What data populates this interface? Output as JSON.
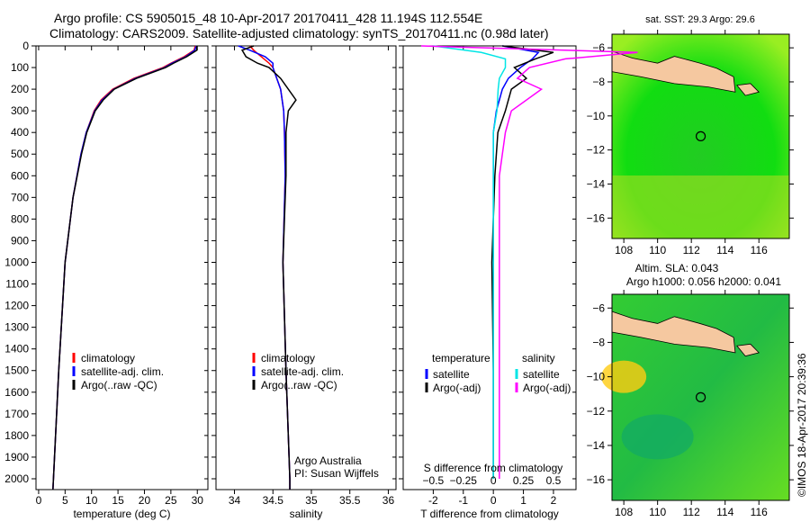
{
  "title_line1": "Argo profile: CS 5905015_48 10-Apr-2017 20170411_428 11.194S 112.554E",
  "title_line2": "Climatology: CARS2009. Satellite-adjusted climatology: synTS_20170411.nc (0.98d later)",
  "side_label": "©IMOS 18-Apr-2017 20:39:36",
  "colors": {
    "climatology": "#ff0000",
    "satellite": "#0000ff",
    "argo": "#000000",
    "sal_satellite": "#00e5e5",
    "sal_argo": "#ff00ff"
  },
  "chart_data": [
    {
      "type": "line",
      "xlabel": "temperature (deg C)",
      "xlim": [
        -0.5,
        32
      ],
      "ylim": [
        2050,
        0
      ],
      "xticks": [
        0,
        5,
        10,
        15,
        20,
        25,
        30
      ],
      "yticks": [
        0,
        100,
        200,
        300,
        400,
        500,
        600,
        700,
        800,
        900,
        1000,
        1100,
        1200,
        1300,
        1400,
        1500,
        1600,
        1700,
        1800,
        1900,
        2000
      ],
      "legend": [
        "climatology",
        "satellite-adj. clim.",
        "Argo(..raw -QC)"
      ],
      "depth": [
        0,
        20,
        50,
        80,
        100,
        150,
        200,
        250,
        300,
        400,
        500,
        700,
        1000,
        1500,
        2000,
        2050
      ],
      "series": [
        {
          "name": "climatology",
          "values": [
            29.6,
            29.4,
            27.5,
            25,
            23.5,
            18,
            14,
            11.8,
            10.5,
            9,
            8,
            6.5,
            5,
            3.8,
            2.8,
            2.7
          ]
        },
        {
          "name": "satellite-adj. clim.",
          "values": [
            29.8,
            29.5,
            27.8,
            25.2,
            23.8,
            18.3,
            14.2,
            12,
            10.6,
            9,
            8,
            6.5,
            5,
            3.8,
            2.8,
            2.7
          ]
        },
        {
          "name": "Argo(..raw -QC)",
          "values": [
            29.9,
            29.9,
            28,
            25.5,
            24,
            18.5,
            14.3,
            12.2,
            10.7,
            9.1,
            8.1,
            6.5,
            5,
            3.8,
            2.8,
            2.7
          ]
        }
      ]
    },
    {
      "type": "line",
      "xlabel": "salinity",
      "xlim": [
        33.76,
        36.1
      ],
      "ylim": [
        2050,
        0
      ],
      "xticks": [
        34,
        34.5,
        35,
        35.5,
        36
      ],
      "legend": [
        "climatology",
        "satellite-adj. clim.",
        "Argo(..raw -QC)"
      ],
      "annotation": [
        "Argo Australia",
        "PI: Susan Wijffels"
      ],
      "depth": [
        0,
        20,
        50,
        80,
        100,
        150,
        200,
        250,
        300,
        400,
        600,
        1000,
        1500,
        2000,
        2050
      ],
      "series": [
        {
          "name": "climatology",
          "values": [
            34.2,
            34.25,
            34.35,
            34.45,
            34.5,
            34.55,
            34.6,
            34.62,
            34.64,
            34.65,
            34.66,
            34.63,
            34.67,
            34.72,
            34.72
          ]
        },
        {
          "name": "satellite-adj. clim.",
          "values": [
            34.05,
            34.2,
            34.4,
            34.5,
            34.5,
            34.55,
            34.6,
            34.62,
            34.64,
            34.65,
            34.66,
            34.63,
            34.67,
            34.72,
            34.72
          ]
        },
        {
          "name": "Argo(..raw -QC)",
          "values": [
            34.25,
            34.1,
            34.15,
            34.3,
            34.45,
            34.6,
            34.7,
            34.8,
            34.7,
            34.67,
            34.67,
            34.63,
            34.67,
            34.72,
            34.72
          ]
        }
      ]
    },
    {
      "type": "line",
      "xlabel": "T difference from climatology",
      "xlabel2": "S difference from climatology",
      "xlim": [
        -3,
        2.75
      ],
      "ylim": [
        2050,
        0
      ],
      "xticks": [
        -2,
        -1,
        0,
        1,
        2
      ],
      "xticks2": [
        "-0.5",
        "-0.25",
        "0",
        "0.25",
        "0.5"
      ],
      "legend_t": {
        "title": "temperature",
        "items": [
          "satellite",
          "Argo(-adj)"
        ]
      },
      "legend_s": {
        "title": "salinity",
        "items": [
          "satellite",
          "Argo(-adj)"
        ]
      },
      "depth": [
        0,
        30,
        60,
        100,
        150,
        200,
        300,
        400,
        600,
        1000,
        1500,
        2000
      ],
      "series": [
        {
          "name": "T satellite",
          "values": [
            0.3,
            1.5,
            1.3,
            0.9,
            0.5,
            0.3,
            0.1,
            0,
            0,
            0,
            0,
            0
          ]
        },
        {
          "name": "T Argo(-adj)",
          "values": [
            0.3,
            2,
            1.4,
            0.7,
            1.1,
            0.6,
            0.4,
            0.15,
            0.05,
            -0.05,
            0,
            0
          ]
        },
        {
          "name": "S satellite",
          "values": [
            -0.5,
            -0.1,
            0.1,
            0.1,
            0.05,
            0.04,
            0.03,
            0,
            0,
            0,
            0,
            0
          ]
        },
        {
          "name": "S Argo(-adj)",
          "values": [
            -0.6,
            1.2,
            0.6,
            0.3,
            0.2,
            0.4,
            0.15,
            0.1,
            0.05,
            0.05,
            0.05,
            0.05
          ]
        }
      ]
    },
    {
      "type": "heatmap",
      "title": "sat. SST: 29.3 Argo: 29.6",
      "xticks": [
        108,
        110,
        112,
        114,
        116
      ],
      "yticks": [
        -6,
        -8,
        -10,
        -12,
        -14,
        -16
      ],
      "marker": [
        112.554,
        -11.194
      ]
    },
    {
      "type": "heatmap",
      "title": "Altim. SLA: 0.043",
      "title2": "Argo h1000: 0.056 h2000: 0.041",
      "xticks": [
        108,
        110,
        112,
        114,
        116
      ],
      "yticks": [
        -6,
        -8,
        -10,
        -12,
        -14,
        -16
      ],
      "marker": [
        112.554,
        -11.194
      ]
    }
  ]
}
